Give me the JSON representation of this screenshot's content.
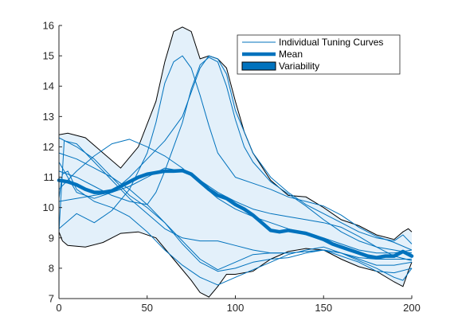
{
  "chart_data": {
    "type": "line",
    "xlim": [
      0,
      200
    ],
    "ylim": [
      7,
      16
    ],
    "xticks": [
      "0",
      "50",
      "100",
      "150",
      "200"
    ],
    "yticks": [
      "7",
      "8",
      "9",
      "10",
      "11",
      "12",
      "13",
      "14",
      "15",
      "16"
    ],
    "grid": false,
    "legend_position": "top-right",
    "legend": {
      "curves_label": "Individual Tuning Curves",
      "mean_label": "Mean",
      "variability_label": "Variability"
    },
    "colors": {
      "curve": "#0072BD",
      "mean": "#0072BD",
      "band_fill": "#e3f0fa",
      "band_edge": "#000000",
      "axis": "#262626"
    },
    "variability_upper": [
      [
        0,
        12.4
      ],
      [
        5,
        12.45
      ],
      [
        15,
        12.3
      ],
      [
        25,
        11.8
      ],
      [
        35,
        11.3
      ],
      [
        45,
        12.0
      ],
      [
        55,
        13.5
      ],
      [
        60,
        14.8
      ],
      [
        65,
        15.8
      ],
      [
        70,
        15.95
      ],
      [
        75,
        15.8
      ],
      [
        80,
        14.9
      ],
      [
        85,
        15.0
      ],
      [
        90,
        14.9
      ],
      [
        95,
        14.6
      ],
      [
        100,
        13.5
      ],
      [
        105,
        12.5
      ],
      [
        110,
        11.8
      ],
      [
        120,
        10.9
      ],
      [
        130,
        10.4
      ],
      [
        140,
        10.35
      ],
      [
        150,
        10.0
      ],
      [
        160,
        9.6
      ],
      [
        170,
        9.4
      ],
      [
        180,
        9.1
      ],
      [
        190,
        8.95
      ],
      [
        195,
        9.2
      ],
      [
        198,
        9.3
      ],
      [
        200,
        9.2
      ]
    ],
    "variability_lower": [
      [
        0,
        9.2
      ],
      [
        2,
        8.9
      ],
      [
        5,
        8.75
      ],
      [
        15,
        8.7
      ],
      [
        25,
        8.85
      ],
      [
        35,
        9.15
      ],
      [
        45,
        9.2
      ],
      [
        55,
        9.0
      ],
      [
        65,
        8.3
      ],
      [
        75,
        7.6
      ],
      [
        80,
        7.2
      ],
      [
        85,
        7.05
      ],
      [
        90,
        7.4
      ],
      [
        95,
        7.8
      ],
      [
        100,
        7.8
      ],
      [
        110,
        7.9
      ],
      [
        120,
        8.3
      ],
      [
        130,
        8.55
      ],
      [
        140,
        8.65
      ],
      [
        150,
        8.6
      ],
      [
        160,
        8.3
      ],
      [
        170,
        8.05
      ],
      [
        180,
        7.9
      ],
      [
        190,
        7.55
      ],
      [
        195,
        7.4
      ],
      [
        198,
        7.9
      ],
      [
        200,
        8.2
      ]
    ],
    "mean": [
      [
        0,
        10.9
      ],
      [
        5,
        10.85
      ],
      [
        10,
        10.75
      ],
      [
        15,
        10.6
      ],
      [
        20,
        10.5
      ],
      [
        25,
        10.5
      ],
      [
        30,
        10.55
      ],
      [
        35,
        10.7
      ],
      [
        40,
        10.85
      ],
      [
        45,
        11.0
      ],
      [
        50,
        11.1
      ],
      [
        55,
        11.15
      ],
      [
        60,
        11.2
      ],
      [
        65,
        11.2
      ],
      [
        70,
        11.22
      ],
      [
        75,
        11.1
      ],
      [
        80,
        10.85
      ],
      [
        85,
        10.6
      ],
      [
        90,
        10.4
      ],
      [
        95,
        10.3
      ],
      [
        100,
        10.1
      ],
      [
        105,
        9.95
      ],
      [
        110,
        9.75
      ],
      [
        115,
        9.5
      ],
      [
        120,
        9.25
      ],
      [
        125,
        9.2
      ],
      [
        130,
        9.25
      ],
      [
        135,
        9.2
      ],
      [
        140,
        9.15
      ],
      [
        145,
        9.05
      ],
      [
        150,
        8.95
      ],
      [
        155,
        8.8
      ],
      [
        160,
        8.7
      ],
      [
        165,
        8.6
      ],
      [
        170,
        8.5
      ],
      [
        175,
        8.4
      ],
      [
        180,
        8.35
      ],
      [
        185,
        8.4
      ],
      [
        190,
        8.4
      ],
      [
        195,
        8.55
      ],
      [
        200,
        8.4
      ]
    ],
    "curves": [
      [
        [
          0,
          9.2
        ],
        [
          3,
          12.2
        ],
        [
          10,
          12.1
        ],
        [
          20,
          11.5
        ],
        [
          30,
          10.9
        ],
        [
          40,
          10.3
        ],
        [
          50,
          9.8
        ],
        [
          60,
          9.3
        ],
        [
          70,
          9.0
        ],
        [
          80,
          8.9
        ],
        [
          90,
          8.9
        ],
        [
          100,
          8.75
        ],
        [
          110,
          8.6
        ],
        [
          120,
          8.5
        ],
        [
          130,
          8.5
        ],
        [
          140,
          8.55
        ],
        [
          150,
          8.6
        ],
        [
          160,
          8.5
        ],
        [
          170,
          8.35
        ],
        [
          180,
          8.3
        ],
        [
          190,
          8.3
        ],
        [
          200,
          8.3
        ]
      ],
      [
        [
          0,
          10.3
        ],
        [
          2,
          11.1
        ],
        [
          5,
          11.2
        ],
        [
          10,
          10.6
        ],
        [
          20,
          10.2
        ],
        [
          30,
          10.0
        ],
        [
          40,
          9.7
        ],
        [
          50,
          9.2
        ],
        [
          60,
          8.6
        ],
        [
          70,
          8.1
        ],
        [
          80,
          7.7
        ],
        [
          90,
          7.45
        ],
        [
          100,
          7.7
        ],
        [
          110,
          7.95
        ],
        [
          120,
          8.2
        ],
        [
          130,
          8.45
        ],
        [
          140,
          8.6
        ],
        [
          150,
          8.7
        ],
        [
          160,
          8.5
        ],
        [
          170,
          8.25
        ],
        [
          180,
          8.0
        ],
        [
          190,
          7.7
        ],
        [
          195,
          7.6
        ],
        [
          200,
          8.0
        ]
      ],
      [
        [
          0,
          10.2
        ],
        [
          10,
          10.3
        ],
        [
          20,
          10.4
        ],
        [
          30,
          10.5
        ],
        [
          40,
          10.7
        ],
        [
          50,
          11.0
        ],
        [
          60,
          11.3
        ],
        [
          70,
          11.2
        ],
        [
          80,
          10.9
        ],
        [
          90,
          10.5
        ],
        [
          100,
          10.2
        ],
        [
          110,
          9.95
        ],
        [
          120,
          9.8
        ],
        [
          130,
          9.7
        ],
        [
          140,
          9.6
        ],
        [
          150,
          9.5
        ],
        [
          160,
          9.35
        ],
        [
          170,
          9.05
        ],
        [
          180,
          8.7
        ],
        [
          190,
          8.4
        ],
        [
          200,
          8.25
        ]
      ],
      [
        [
          0,
          11.8
        ],
        [
          10,
          11.6
        ],
        [
          20,
          11.3
        ],
        [
          30,
          11.0
        ],
        [
          40,
          10.6
        ],
        [
          50,
          10.1
        ],
        [
          60,
          9.5
        ],
        [
          70,
          8.8
        ],
        [
          80,
          8.2
        ],
        [
          90,
          7.9
        ],
        [
          100,
          8.0
        ],
        [
          110,
          8.2
        ],
        [
          120,
          8.3
        ],
        [
          130,
          8.35
        ],
        [
          140,
          8.5
        ],
        [
          150,
          8.6
        ],
        [
          160,
          8.5
        ],
        [
          170,
          8.3
        ],
        [
          180,
          8.1
        ],
        [
          190,
          8.1
        ],
        [
          200,
          8.2
        ]
      ],
      [
        [
          0,
          12.3
        ],
        [
          10,
          12.0
        ],
        [
          20,
          11.6
        ],
        [
          30,
          11.0
        ],
        [
          40,
          10.4
        ],
        [
          50,
          10.0
        ],
        [
          60,
          9.5
        ],
        [
          70,
          8.9
        ],
        [
          80,
          8.3
        ],
        [
          90,
          7.95
        ],
        [
          100,
          8.2
        ],
        [
          110,
          8.45
        ],
        [
          120,
          8.5
        ],
        [
          130,
          8.5
        ],
        [
          140,
          8.55
        ],
        [
          150,
          8.6
        ],
        [
          160,
          8.4
        ],
        [
          170,
          8.2
        ],
        [
          180,
          7.9
        ],
        [
          190,
          7.85
        ],
        [
          200,
          8.0
        ]
      ],
      [
        [
          0,
          9.3
        ],
        [
          10,
          9.8
        ],
        [
          20,
          9.5
        ],
        [
          30,
          9.9
        ],
        [
          40,
          10.6
        ],
        [
          50,
          11.8
        ],
        [
          55,
          12.8
        ],
        [
          60,
          14.1
        ],
        [
          65,
          14.8
        ],
        [
          70,
          15.0
        ],
        [
          75,
          14.6
        ],
        [
          80,
          13.7
        ],
        [
          85,
          12.7
        ],
        [
          90,
          11.8
        ],
        [
          100,
          11.0
        ],
        [
          110,
          10.8
        ],
        [
          120,
          10.6
        ],
        [
          130,
          10.35
        ],
        [
          140,
          10.2
        ],
        [
          150,
          10.05
        ],
        [
          160,
          9.75
        ],
        [
          170,
          9.35
        ],
        [
          180,
          9.05
        ],
        [
          190,
          8.85
        ],
        [
          200,
          8.6
        ]
      ],
      [
        [
          0,
          11.2
        ],
        [
          10,
          11.0
        ],
        [
          20,
          10.7
        ],
        [
          30,
          10.4
        ],
        [
          40,
          10.2
        ],
        [
          50,
          10.1
        ],
        [
          55,
          10.5
        ],
        [
          60,
          11.2
        ],
        [
          65,
          12.0
        ],
        [
          70,
          12.8
        ],
        [
          75,
          13.9
        ],
        [
          80,
          14.7
        ],
        [
          85,
          14.95
        ],
        [
          90,
          14.8
        ],
        [
          95,
          14.0
        ],
        [
          100,
          12.9
        ],
        [
          105,
          12.0
        ],
        [
          110,
          11.5
        ],
        [
          120,
          10.85
        ],
        [
          130,
          10.45
        ],
        [
          140,
          10.05
        ],
        [
          150,
          9.6
        ],
        [
          160,
          9.2
        ],
        [
          170,
          8.9
        ],
        [
          180,
          8.7
        ],
        [
          190,
          8.6
        ],
        [
          200,
          8.5
        ]
      ],
      [
        [
          0,
          10.6
        ],
        [
          10,
          11.2
        ],
        [
          20,
          11.7
        ],
        [
          30,
          12.1
        ],
        [
          40,
          12.25
        ],
        [
          50,
          12.0
        ],
        [
          60,
          11.7
        ],
        [
          70,
          11.3
        ],
        [
          80,
          10.8
        ],
        [
          90,
          10.3
        ],
        [
          100,
          9.95
        ],
        [
          110,
          9.7
        ],
        [
          120,
          9.5
        ],
        [
          130,
          9.3
        ],
        [
          140,
          9.15
        ],
        [
          150,
          9.0
        ],
        [
          160,
          8.8
        ],
        [
          170,
          8.6
        ],
        [
          180,
          8.5
        ],
        [
          190,
          8.5
        ],
        [
          200,
          8.6
        ]
      ],
      [
        [
          0,
          11.5
        ],
        [
          5,
          11.0
        ],
        [
          10,
          10.5
        ],
        [
          20,
          10.3
        ],
        [
          30,
          10.5
        ],
        [
          40,
          11.0
        ],
        [
          50,
          11.6
        ],
        [
          60,
          12.2
        ],
        [
          70,
          13.0
        ],
        [
          80,
          14.6
        ],
        [
          85,
          15.0
        ],
        [
          90,
          14.9
        ],
        [
          95,
          14.4
        ],
        [
          100,
          13.2
        ],
        [
          110,
          11.8
        ],
        [
          120,
          11.0
        ],
        [
          130,
          10.5
        ],
        [
          140,
          10.1
        ],
        [
          150,
          9.8
        ],
        [
          160,
          9.5
        ],
        [
          170,
          9.2
        ],
        [
          180,
          9.0
        ],
        [
          190,
          8.9
        ],
        [
          195,
          9.1
        ],
        [
          200,
          8.8
        ]
      ]
    ]
  }
}
